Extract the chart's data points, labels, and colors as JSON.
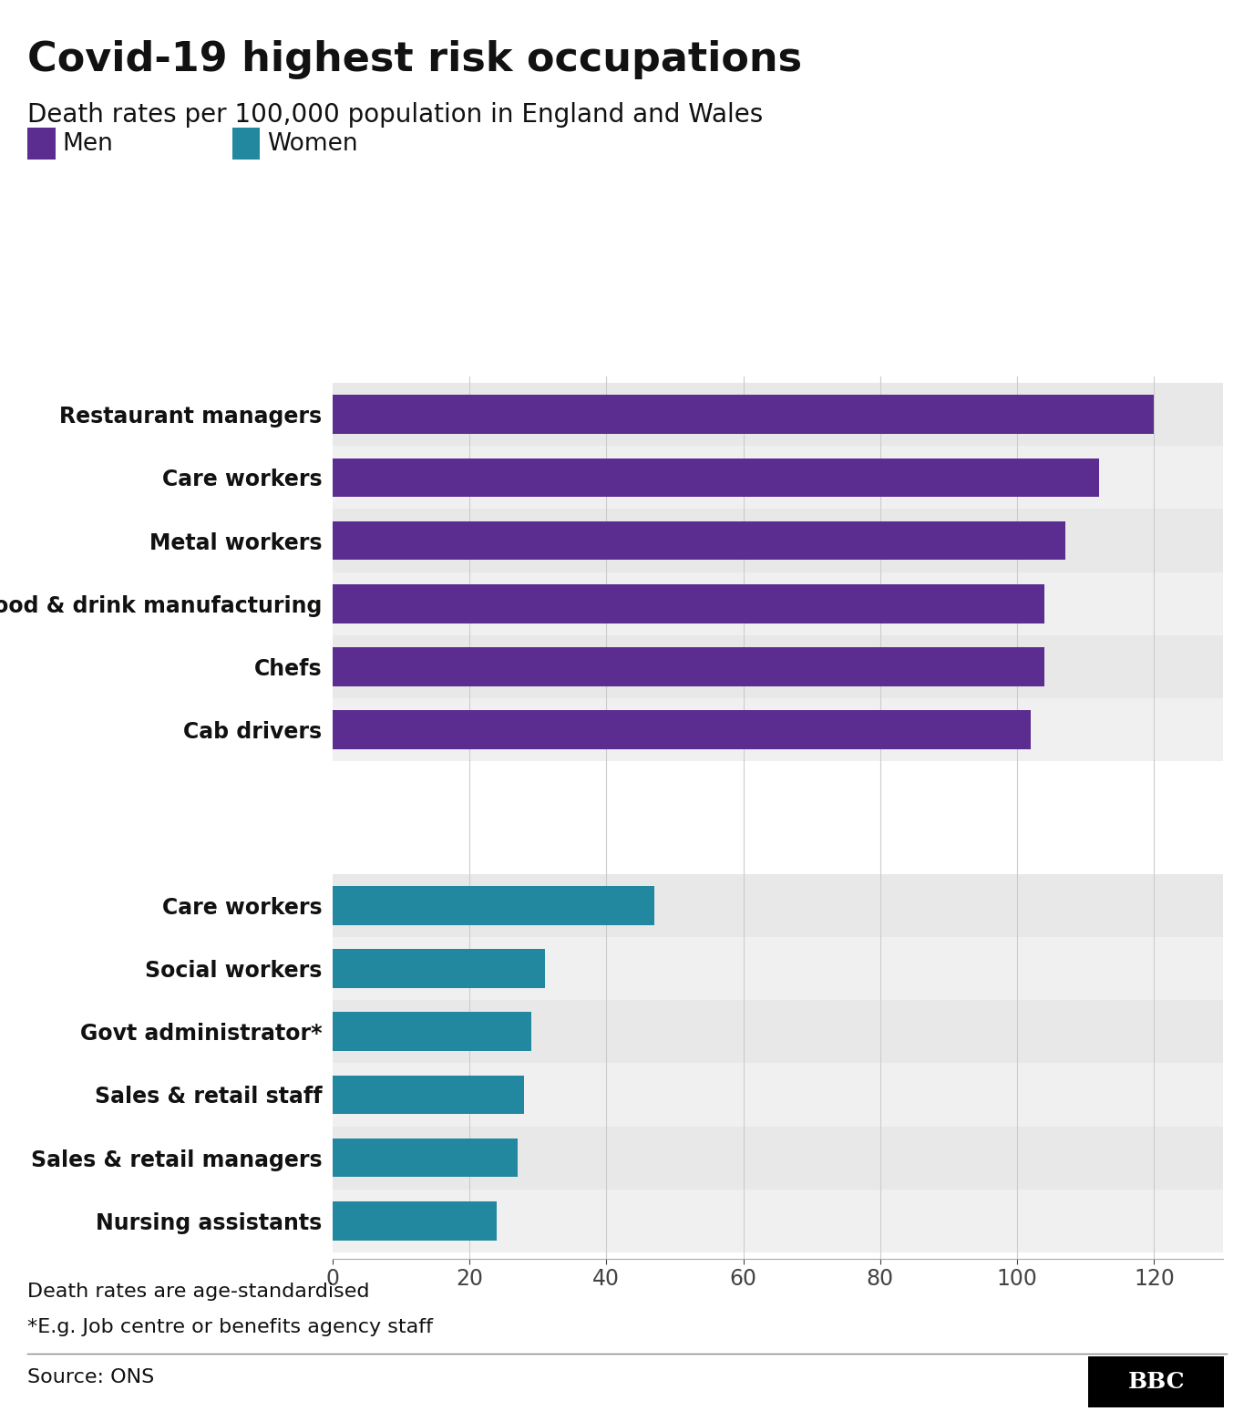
{
  "title": "Covid-19 highest risk occupations",
  "subtitle": "Death rates per 100,000 population in England and Wales",
  "men_labels": [
    "Restaurant managers",
    "Care workers",
    "Metal workers",
    "Food & drink manufacturing",
    "Chefs",
    "Cab drivers"
  ],
  "men_values": [
    120,
    112,
    107,
    104,
    104,
    102
  ],
  "women_labels": [
    "Care workers",
    "Social workers",
    "Govt administrator*",
    "Sales & retail staff",
    "Sales & retail managers",
    "Nursing assistants"
  ],
  "women_values": [
    47,
    31,
    29,
    28,
    27,
    24
  ],
  "men_color": "#5c2d91",
  "women_color": "#2188a0",
  "bg_color": "#ffffff",
  "stripe_color_odd": "#e8e8e8",
  "stripe_color_even": "#f0f0f0",
  "xlim_max": 130,
  "xticks": [
    0,
    20,
    40,
    60,
    80,
    100,
    120
  ],
  "footnote1": "Death rates are age-standardised",
  "footnote2": "*E.g. Job centre or benefits agency staff",
  "source": "Source: ONS",
  "bar_height": 0.62
}
